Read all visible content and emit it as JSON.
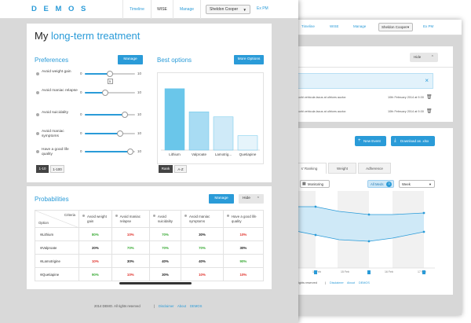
{
  "front": {
    "logo": "D E M O S",
    "nav": {
      "tab_timeline": "Timeline",
      "tab_wise": "WISE",
      "tab_manage": "Manage",
      "user": "Sheldon Cooper",
      "logout": "Ex PM"
    },
    "title_plain": "My ",
    "title_highlight": "long-term treatment",
    "preferences": {
      "title": "Preferences",
      "manage_label": "Manage",
      "items": [
        {
          "label": "Avoid weight gain",
          "min": "0",
          "max": "10",
          "value": 5
        },
        {
          "label": "Avoid maniac relapse",
          "min": "0",
          "max": "10",
          "value": 4
        },
        {
          "label": "Avoid suicidality",
          "min": "0",
          "max": "10",
          "value": 8
        },
        {
          "label": "Avoid maniac symptoms",
          "min": "0",
          "max": "10",
          "value": 7
        },
        {
          "label": "Have a good life quality",
          "min": "0",
          "max": "10",
          "value": 9
        }
      ],
      "knob_value_display": "5",
      "scale_on": "1-10",
      "scale_off": "1-100"
    },
    "best_options": {
      "title": "Best options",
      "more_label": "More Options",
      "sort_on": "Rank",
      "sort_off": "A-Z"
    },
    "probabilities": {
      "title": "Probabilities",
      "manage_label": "Manage",
      "hide_label": "Hide",
      "corner_top": "Criteria",
      "corner_bottom": "Option",
      "headers": [
        "Avoid weight gain",
        "Avoid maniac relapse",
        "Avoid suicidality",
        "Avoid maniac symptoms",
        "Have a good life quality"
      ],
      "rows": [
        {
          "option": "Lithium",
          "values": [
            "80%",
            "10%",
            "70%",
            "30%",
            "10%"
          ],
          "colors": [
            "g",
            "r",
            "g",
            "k",
            "r"
          ]
        },
        {
          "option": "Valproate",
          "values": [
            "20%",
            "70%",
            "70%",
            "70%",
            "30%"
          ],
          "colors": [
            "k",
            "g",
            "g",
            "g",
            "k"
          ]
        },
        {
          "option": "Lamotrigine",
          "values": [
            "10%",
            "30%",
            "40%",
            "40%",
            "90%"
          ],
          "colors": [
            "r",
            "k",
            "k",
            "k",
            "g"
          ]
        },
        {
          "option": "Quetiapine",
          "values": [
            "90%",
            "10%",
            "30%",
            "10%",
            "10%"
          ],
          "colors": [
            "g",
            "r",
            "k",
            "r",
            "r"
          ]
        }
      ]
    },
    "footer": {
      "copyright": "2014 DEMO. All rights reserved",
      "sep": "|",
      "disclaimer": "Disclaimer",
      "about": "About",
      "demos": "DEMOS"
    }
  },
  "back": {
    "nav": {
      "tab_timeline": "Timeline",
      "tab_wise": "WISE",
      "tab_manage": "Manage",
      "user": "Sheldon Cooper",
      "logout": "Ex PM"
    },
    "hide_label": "Hide",
    "feed": [
      {
        "text": "r. Morbi vehicula lacus at ultrices auctor.",
        "date": "10th February 2014 at 9.00"
      },
      {
        "text": "r. Morbi vehicula lacus at ultrices auctor.",
        "date": "10th February 2014 at 9.00"
      }
    ],
    "new_event": "New Event",
    "download": "Download as .xlsx",
    "tabs": [
      "s' Ranking",
      "Weight",
      "Adherence"
    ],
    "monitoring": "Monitoring",
    "all_meds": "All Meds",
    "all_meds_count": "3",
    "week": "Week",
    "date_ticks": [
      "14 Feb",
      "15 Feb",
      "16 Feb",
      "17 Feb"
    ],
    "footer": {
      "copyright": "ally rights reserved",
      "sep": "|",
      "disclaimer": "Disclaimer",
      "about": "About",
      "demos": "DEMOS"
    }
  },
  "chart_data": {
    "type": "bar",
    "title": "Best options",
    "categories": [
      "Lithium",
      "Valproate",
      "Lamotrig...",
      "Quetiapine"
    ],
    "values": [
      85,
      53,
      46,
      20
    ],
    "ylim": [
      0,
      100
    ],
    "grid": false,
    "colors": [
      "#6ac6ea",
      "#a8dcf3",
      "#cfeaf8",
      "#e6f4fb"
    ]
  }
}
